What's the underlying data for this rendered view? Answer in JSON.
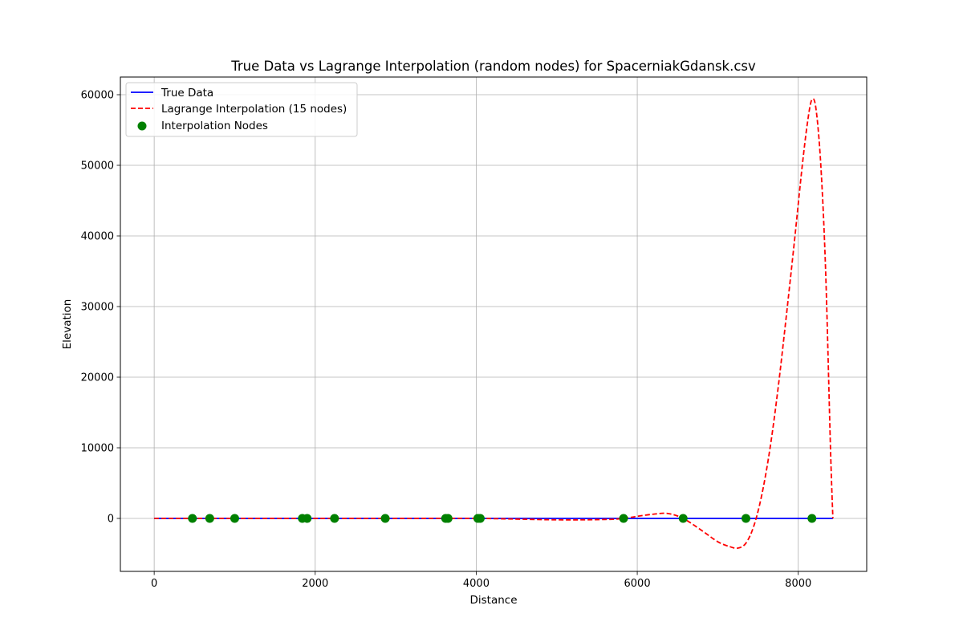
{
  "chart_data": {
    "type": "line",
    "title": "True Data vs Lagrange Interpolation (random nodes) for SpacerniakGdansk.csv",
    "xlabel": "Distance",
    "ylabel": "Elevation",
    "xlim": [
      -420,
      8850
    ],
    "ylim": [
      -7500,
      62500
    ],
    "xticks": [
      0,
      2000,
      4000,
      6000,
      8000
    ],
    "yticks": [
      0,
      10000,
      20000,
      30000,
      40000,
      50000,
      60000
    ],
    "grid": true,
    "legend_position": "top-left",
    "series": [
      {
        "name": "True Data",
        "style": "solid",
        "color": "#0000ff",
        "x": [
          0,
          500,
          1000,
          2000,
          3000,
          4000,
          5000,
          6000,
          7000,
          8000,
          8430
        ],
        "y": [
          0,
          0,
          0,
          0,
          0,
          0,
          0,
          0,
          0,
          0,
          0
        ]
      },
      {
        "name": "Lagrange Interpolation (15 nodes)",
        "style": "dashed",
        "color": "#ff0000",
        "x": [
          0,
          475,
          1000,
          2000,
          3000,
          4000,
          5000,
          5600,
          5830,
          6000,
          6200,
          6380,
          6570,
          6800,
          7000,
          7150,
          7250,
          7350,
          7450,
          7550,
          7650,
          7750,
          7850,
          7950,
          8050,
          8120,
          8170,
          8220,
          8280,
          8340,
          8400,
          8430
        ],
        "y": [
          0,
          0,
          0,
          0,
          0,
          0,
          -200,
          -150,
          0,
          300,
          600,
          700,
          0,
          -1700,
          -3300,
          -4000,
          -4200,
          -3500,
          -1000,
          3500,
          10000,
          18500,
          28500,
          39000,
          50000,
          56500,
          59300,
          58000,
          50000,
          35000,
          10000,
          0
        ]
      }
    ],
    "scatter": {
      "name": "Interpolation Nodes",
      "color": "#008000",
      "x": [
        475,
        690,
        1000,
        1840,
        1900,
        2240,
        2870,
        3620,
        3650,
        4020,
        4050,
        5830,
        6570,
        7350,
        8170
      ],
      "y": [
        0,
        0,
        0,
        0,
        0,
        0,
        0,
        0,
        0,
        0,
        0,
        0,
        0,
        0,
        0
      ]
    }
  }
}
